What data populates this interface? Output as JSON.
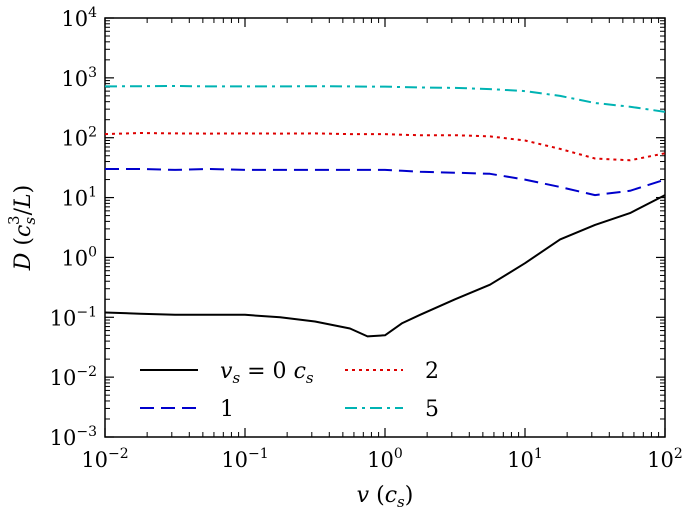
{
  "chart_data": {
    "type": "line",
    "title": "",
    "xlabel": "v (c_s)",
    "ylabel": "D (c_s^3/L)",
    "xscale": "log",
    "yscale": "log",
    "xlim": [
      0.01,
      100
    ],
    "ylim": [
      0.001,
      10000
    ],
    "legend_position": "lower-left",
    "x_ticks": [
      {
        "base": "10",
        "exp": "−2"
      },
      {
        "base": "10",
        "exp": "−1"
      },
      {
        "base": "10",
        "exp": "0"
      },
      {
        "base": "10",
        "exp": "1"
      },
      {
        "base": "10",
        "exp": "2"
      }
    ],
    "y_ticks": [
      {
        "base": "10",
        "exp": "−3"
      },
      {
        "base": "10",
        "exp": "−2"
      },
      {
        "base": "10",
        "exp": "−1"
      },
      {
        "base": "10",
        "exp": "0"
      },
      {
        "base": "10",
        "exp": "1"
      },
      {
        "base": "10",
        "exp": "2"
      },
      {
        "base": "10",
        "exp": "3"
      },
      {
        "base": "10",
        "exp": "4"
      }
    ],
    "x": [
      0.01,
      0.0178,
      0.0316,
      0.0562,
      0.1,
      0.178,
      0.316,
      0.562,
      0.75,
      1.0,
      1.33,
      1.78,
      3.16,
      5.62,
      10.0,
      17.8,
      31.6,
      56.2,
      100.0
    ],
    "series": [
      {
        "name": "v_s = 0 c_s",
        "color": "#000000",
        "dash": "solid",
        "values": [
          0.12,
          0.115,
          0.11,
          0.11,
          0.11,
          0.1,
          0.085,
          0.065,
          0.048,
          0.05,
          0.08,
          0.11,
          0.2,
          0.35,
          0.8,
          2.0,
          3.5,
          5.5,
          11
        ]
      },
      {
        "name": "1",
        "color": "#0000cc",
        "dash": "dashed",
        "values": [
          30,
          30,
          29,
          30,
          29,
          29,
          29,
          29,
          29,
          29,
          28,
          27,
          26,
          25,
          20,
          15,
          11,
          13,
          20
        ]
      },
      {
        "name": "2",
        "color": "#dd0000",
        "dash": "dotted",
        "values": [
          115,
          120,
          118,
          117,
          118,
          117,
          118,
          115,
          115,
          115,
          112,
          110,
          110,
          105,
          90,
          65,
          45,
          42,
          55
        ]
      },
      {
        "name": "5",
        "color": "#00b3b3",
        "dash": "dashdot",
        "values": [
          720,
          725,
          730,
          720,
          720,
          720,
          725,
          720,
          715,
          715,
          700,
          690,
          680,
          650,
          600,
          500,
          380,
          330,
          270
        ]
      }
    ],
    "legend": {
      "entries": [
        {
          "prefix": "v",
          "sub": "s",
          "mid": " = 0 ",
          "c": "c",
          "csub": "s"
        },
        {
          "text": "1"
        },
        {
          "text": "2"
        },
        {
          "text": "5"
        }
      ]
    },
    "axis_label_parts": {
      "x": {
        "v": "v",
        "open": " (",
        "c": "c",
        "sub": "s",
        "close": ")"
      },
      "y": {
        "D": "D",
        "open": " (",
        "c": "c",
        "sub": "s",
        "sup": "3",
        "slash": "/",
        "L": "L",
        "close": ")"
      }
    }
  }
}
